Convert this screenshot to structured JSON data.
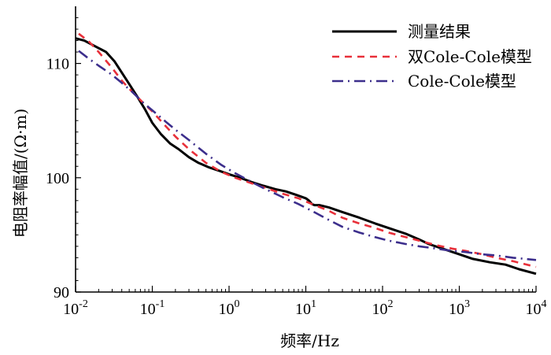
{
  "chart_data": {
    "type": "line",
    "x_scale": "log",
    "xlabel": "频率/Hz",
    "ylabel": "电阻率幅值/(Ω·m)",
    "xlim": [
      0.01,
      10000
    ],
    "ylim": [
      90,
      115
    ],
    "y_ticks": [
      90,
      100,
      110
    ],
    "y_tick_labels": [
      "90",
      "100",
      "110"
    ],
    "x_ticks": [
      0.01,
      0.1,
      1,
      10,
      100,
      1000,
      10000
    ],
    "x_tick_labels": [
      {
        "base": "10",
        "exp": "-2"
      },
      {
        "base": "10",
        "exp": "-1"
      },
      {
        "base": "10",
        "exp": "0"
      },
      {
        "base": "10",
        "exp": "1"
      },
      {
        "base": "10",
        "exp": "2"
      },
      {
        "base": "10",
        "exp": "3"
      },
      {
        "base": "10",
        "exp": "4"
      }
    ],
    "legend_position": "top-right",
    "series": [
      {
        "name": "测量结果",
        "color": "#000000",
        "dash": "solid",
        "x": [
          0.01,
          0.013,
          0.018,
          0.025,
          0.032,
          0.04,
          0.05,
          0.065,
          0.08,
          0.1,
          0.13,
          0.17,
          0.22,
          0.3,
          0.4,
          0.55,
          0.75,
          1,
          1.4,
          2,
          2.8,
          4,
          5.5,
          7.5,
          10,
          11,
          12,
          13,
          15,
          20,
          30,
          50,
          80,
          120,
          200,
          300,
          400,
          600,
          1000,
          1500,
          2500,
          4000,
          6000,
          10000
        ],
        "y": [
          112.2,
          112.0,
          111.5,
          111.0,
          110.2,
          109.2,
          108.2,
          107.0,
          106.0,
          104.8,
          103.8,
          103.0,
          102.5,
          101.8,
          101.3,
          100.9,
          100.6,
          100.3,
          100.0,
          99.6,
          99.3,
          99.0,
          98.8,
          98.5,
          98.2,
          98.0,
          97.7,
          97.6,
          97.6,
          97.4,
          97.0,
          96.5,
          96.0,
          95.6,
          95.1,
          94.6,
          94.2,
          93.8,
          93.3,
          92.9,
          92.6,
          92.4,
          92.0,
          91.6
        ]
      },
      {
        "name": "双Cole-Cole模型",
        "color": "#e8303a",
        "dash": "dash",
        "x": [
          0.011,
          0.015,
          0.02,
          0.03,
          0.04,
          0.055,
          0.075,
          0.1,
          0.15,
          0.2,
          0.3,
          0.5,
          0.8,
          1.2,
          2,
          3,
          5,
          8,
          12,
          20,
          30,
          50,
          80,
          120,
          200,
          300,
          500,
          800,
          1200,
          2000,
          3000,
          5000,
          10000
        ],
        "y": [
          112.6,
          111.9,
          111.0,
          109.6,
          108.5,
          107.5,
          106.6,
          105.8,
          104.5,
          103.6,
          102.5,
          101.3,
          100.5,
          100.0,
          99.5,
          99.1,
          98.6,
          98.2,
          97.7,
          97.1,
          96.5,
          96.0,
          95.6,
          95.2,
          94.8,
          94.5,
          94.1,
          93.8,
          93.6,
          93.3,
          93.0,
          92.7,
          92.2
        ]
      },
      {
        "name": "Cole-Cole模型",
        "color": "#3c2e8c",
        "dash": "dashdot",
        "x": [
          0.011,
          0.015,
          0.02,
          0.03,
          0.04,
          0.055,
          0.075,
          0.1,
          0.15,
          0.2,
          0.3,
          0.5,
          0.8,
          1.2,
          2,
          3,
          5,
          8,
          12,
          20,
          30,
          50,
          80,
          120,
          200,
          300,
          500,
          800,
          1200,
          2000,
          3000,
          5000,
          10000
        ],
        "y": [
          111.1,
          110.4,
          109.8,
          109.0,
          108.3,
          107.5,
          106.6,
          105.9,
          104.9,
          104.2,
          103.3,
          102.1,
          101.1,
          100.4,
          99.6,
          99.0,
          98.3,
          97.7,
          97.1,
          96.3,
          95.7,
          95.2,
          94.8,
          94.5,
          94.2,
          94.0,
          93.8,
          93.6,
          93.5,
          93.3,
          93.2,
          93.0,
          92.8
        ]
      }
    ]
  }
}
